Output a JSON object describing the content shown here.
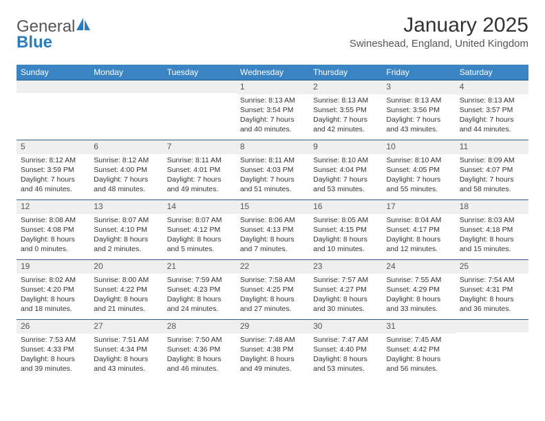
{
  "brand": {
    "word1": "General",
    "word2": "Blue",
    "icon_color": "#2b7bbd",
    "text_color": "#555555"
  },
  "title": "January 2025",
  "location": "Swineshead, England, United Kingdom",
  "header_bg": "#3b84c4",
  "header_fg": "#ffffff",
  "daynum_bg": "#efefef",
  "border_color": "#2d5c8a",
  "day_headers": [
    "Sunday",
    "Monday",
    "Tuesday",
    "Wednesday",
    "Thursday",
    "Friday",
    "Saturday"
  ],
  "weeks": [
    [
      {
        "n": "",
        "lines": []
      },
      {
        "n": "",
        "lines": []
      },
      {
        "n": "",
        "lines": []
      },
      {
        "n": "1",
        "lines": [
          "Sunrise: 8:13 AM",
          "Sunset: 3:54 PM",
          "Daylight: 7 hours and 40 minutes."
        ]
      },
      {
        "n": "2",
        "lines": [
          "Sunrise: 8:13 AM",
          "Sunset: 3:55 PM",
          "Daylight: 7 hours and 42 minutes."
        ]
      },
      {
        "n": "3",
        "lines": [
          "Sunrise: 8:13 AM",
          "Sunset: 3:56 PM",
          "Daylight: 7 hours and 43 minutes."
        ]
      },
      {
        "n": "4",
        "lines": [
          "Sunrise: 8:13 AM",
          "Sunset: 3:57 PM",
          "Daylight: 7 hours and 44 minutes."
        ]
      }
    ],
    [
      {
        "n": "5",
        "lines": [
          "Sunrise: 8:12 AM",
          "Sunset: 3:59 PM",
          "Daylight: 7 hours and 46 minutes."
        ]
      },
      {
        "n": "6",
        "lines": [
          "Sunrise: 8:12 AM",
          "Sunset: 4:00 PM",
          "Daylight: 7 hours and 48 minutes."
        ]
      },
      {
        "n": "7",
        "lines": [
          "Sunrise: 8:11 AM",
          "Sunset: 4:01 PM",
          "Daylight: 7 hours and 49 minutes."
        ]
      },
      {
        "n": "8",
        "lines": [
          "Sunrise: 8:11 AM",
          "Sunset: 4:03 PM",
          "Daylight: 7 hours and 51 minutes."
        ]
      },
      {
        "n": "9",
        "lines": [
          "Sunrise: 8:10 AM",
          "Sunset: 4:04 PM",
          "Daylight: 7 hours and 53 minutes."
        ]
      },
      {
        "n": "10",
        "lines": [
          "Sunrise: 8:10 AM",
          "Sunset: 4:05 PM",
          "Daylight: 7 hours and 55 minutes."
        ]
      },
      {
        "n": "11",
        "lines": [
          "Sunrise: 8:09 AM",
          "Sunset: 4:07 PM",
          "Daylight: 7 hours and 58 minutes."
        ]
      }
    ],
    [
      {
        "n": "12",
        "lines": [
          "Sunrise: 8:08 AM",
          "Sunset: 4:08 PM",
          "Daylight: 8 hours and 0 minutes."
        ]
      },
      {
        "n": "13",
        "lines": [
          "Sunrise: 8:07 AM",
          "Sunset: 4:10 PM",
          "Daylight: 8 hours and 2 minutes."
        ]
      },
      {
        "n": "14",
        "lines": [
          "Sunrise: 8:07 AM",
          "Sunset: 4:12 PM",
          "Daylight: 8 hours and 5 minutes."
        ]
      },
      {
        "n": "15",
        "lines": [
          "Sunrise: 8:06 AM",
          "Sunset: 4:13 PM",
          "Daylight: 8 hours and 7 minutes."
        ]
      },
      {
        "n": "16",
        "lines": [
          "Sunrise: 8:05 AM",
          "Sunset: 4:15 PM",
          "Daylight: 8 hours and 10 minutes."
        ]
      },
      {
        "n": "17",
        "lines": [
          "Sunrise: 8:04 AM",
          "Sunset: 4:17 PM",
          "Daylight: 8 hours and 12 minutes."
        ]
      },
      {
        "n": "18",
        "lines": [
          "Sunrise: 8:03 AM",
          "Sunset: 4:18 PM",
          "Daylight: 8 hours and 15 minutes."
        ]
      }
    ],
    [
      {
        "n": "19",
        "lines": [
          "Sunrise: 8:02 AM",
          "Sunset: 4:20 PM",
          "Daylight: 8 hours and 18 minutes."
        ]
      },
      {
        "n": "20",
        "lines": [
          "Sunrise: 8:00 AM",
          "Sunset: 4:22 PM",
          "Daylight: 8 hours and 21 minutes."
        ]
      },
      {
        "n": "21",
        "lines": [
          "Sunrise: 7:59 AM",
          "Sunset: 4:23 PM",
          "Daylight: 8 hours and 24 minutes."
        ]
      },
      {
        "n": "22",
        "lines": [
          "Sunrise: 7:58 AM",
          "Sunset: 4:25 PM",
          "Daylight: 8 hours and 27 minutes."
        ]
      },
      {
        "n": "23",
        "lines": [
          "Sunrise: 7:57 AM",
          "Sunset: 4:27 PM",
          "Daylight: 8 hours and 30 minutes."
        ]
      },
      {
        "n": "24",
        "lines": [
          "Sunrise: 7:55 AM",
          "Sunset: 4:29 PM",
          "Daylight: 8 hours and 33 minutes."
        ]
      },
      {
        "n": "25",
        "lines": [
          "Sunrise: 7:54 AM",
          "Sunset: 4:31 PM",
          "Daylight: 8 hours and 36 minutes."
        ]
      }
    ],
    [
      {
        "n": "26",
        "lines": [
          "Sunrise: 7:53 AM",
          "Sunset: 4:33 PM",
          "Daylight: 8 hours and 39 minutes."
        ]
      },
      {
        "n": "27",
        "lines": [
          "Sunrise: 7:51 AM",
          "Sunset: 4:34 PM",
          "Daylight: 8 hours and 43 minutes."
        ]
      },
      {
        "n": "28",
        "lines": [
          "Sunrise: 7:50 AM",
          "Sunset: 4:36 PM",
          "Daylight: 8 hours and 46 minutes."
        ]
      },
      {
        "n": "29",
        "lines": [
          "Sunrise: 7:48 AM",
          "Sunset: 4:38 PM",
          "Daylight: 8 hours and 49 minutes."
        ]
      },
      {
        "n": "30",
        "lines": [
          "Sunrise: 7:47 AM",
          "Sunset: 4:40 PM",
          "Daylight: 8 hours and 53 minutes."
        ]
      },
      {
        "n": "31",
        "lines": [
          "Sunrise: 7:45 AM",
          "Sunset: 4:42 PM",
          "Daylight: 8 hours and 56 minutes."
        ]
      },
      {
        "n": "",
        "lines": []
      }
    ]
  ]
}
